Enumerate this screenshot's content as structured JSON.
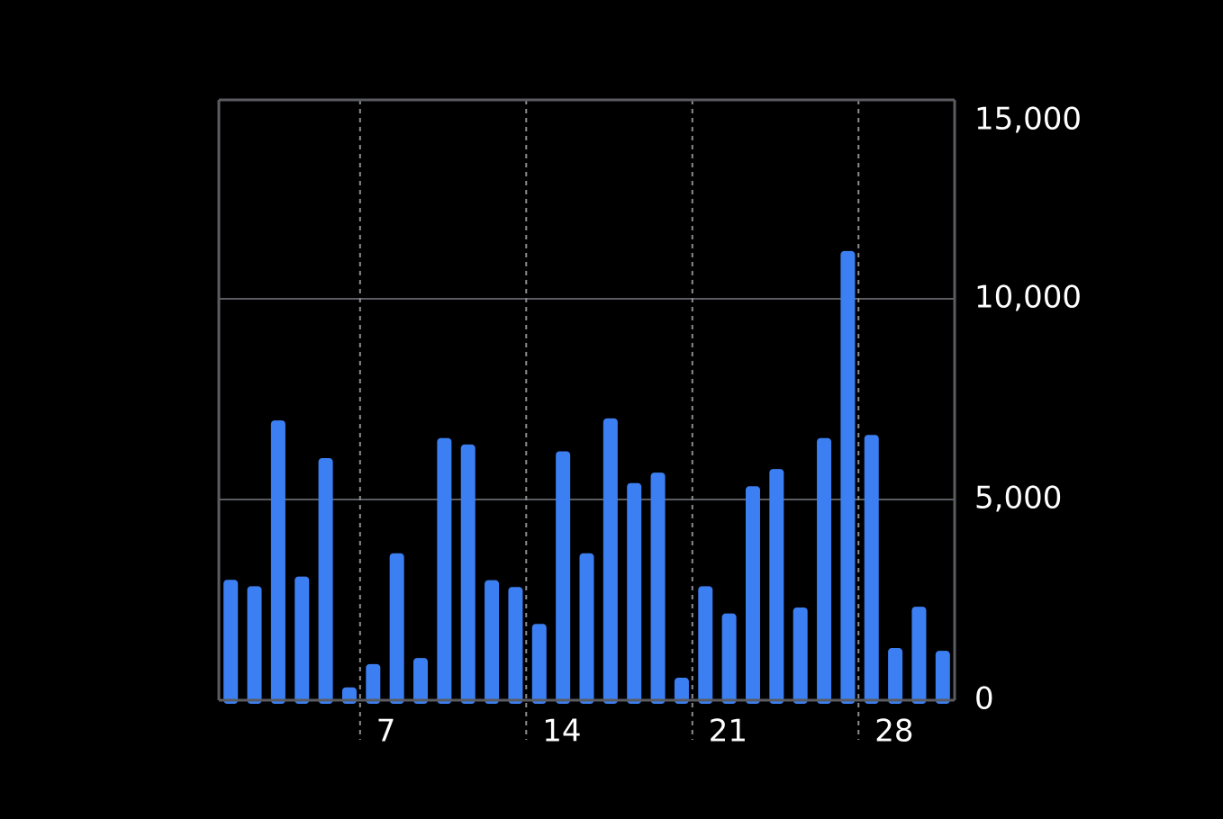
{
  "chart_data": {
    "type": "bar",
    "title": "",
    "xlabel": "",
    "ylabel": "",
    "x": [
      1,
      2,
      3,
      4,
      5,
      6,
      7,
      8,
      9,
      10,
      11,
      12,
      13,
      14,
      15,
      16,
      17,
      18,
      19,
      20,
      21,
      22,
      23,
      24,
      25,
      26,
      27,
      28,
      29,
      30,
      31
    ],
    "values": [
      3000,
      2840,
      6970,
      3080,
      6030,
      320,
      900,
      3660,
      1050,
      6530,
      6370,
      2990,
      2820,
      1900,
      6200,
      3660,
      7020,
      5410,
      5670,
      560,
      2840,
      2160,
      5330,
      5760,
      2310,
      6530,
      11190,
      6610,
      1300,
      2330,
      1230
    ],
    "x_tick_values": [
      7,
      14,
      21,
      28
    ],
    "x_tick_labels": [
      "7",
      "14",
      "21",
      "28"
    ],
    "y_tick_values": [
      0,
      5000,
      10000,
      15000
    ],
    "y_tick_labels": [
      "0",
      "5,000",
      "10,000",
      "15,000"
    ],
    "ylim": [
      0,
      15000
    ],
    "y_axis_side": "right",
    "grid": {
      "horizontal": "solid",
      "vertical": "dashed"
    },
    "colors": {
      "background": "#000000",
      "bar": "#3b7ff2",
      "axis": "#5a5c61",
      "gridline": "#5a5c61",
      "dashed_gridline": "#8a8c90",
      "tick_label": "#ffffff"
    }
  }
}
